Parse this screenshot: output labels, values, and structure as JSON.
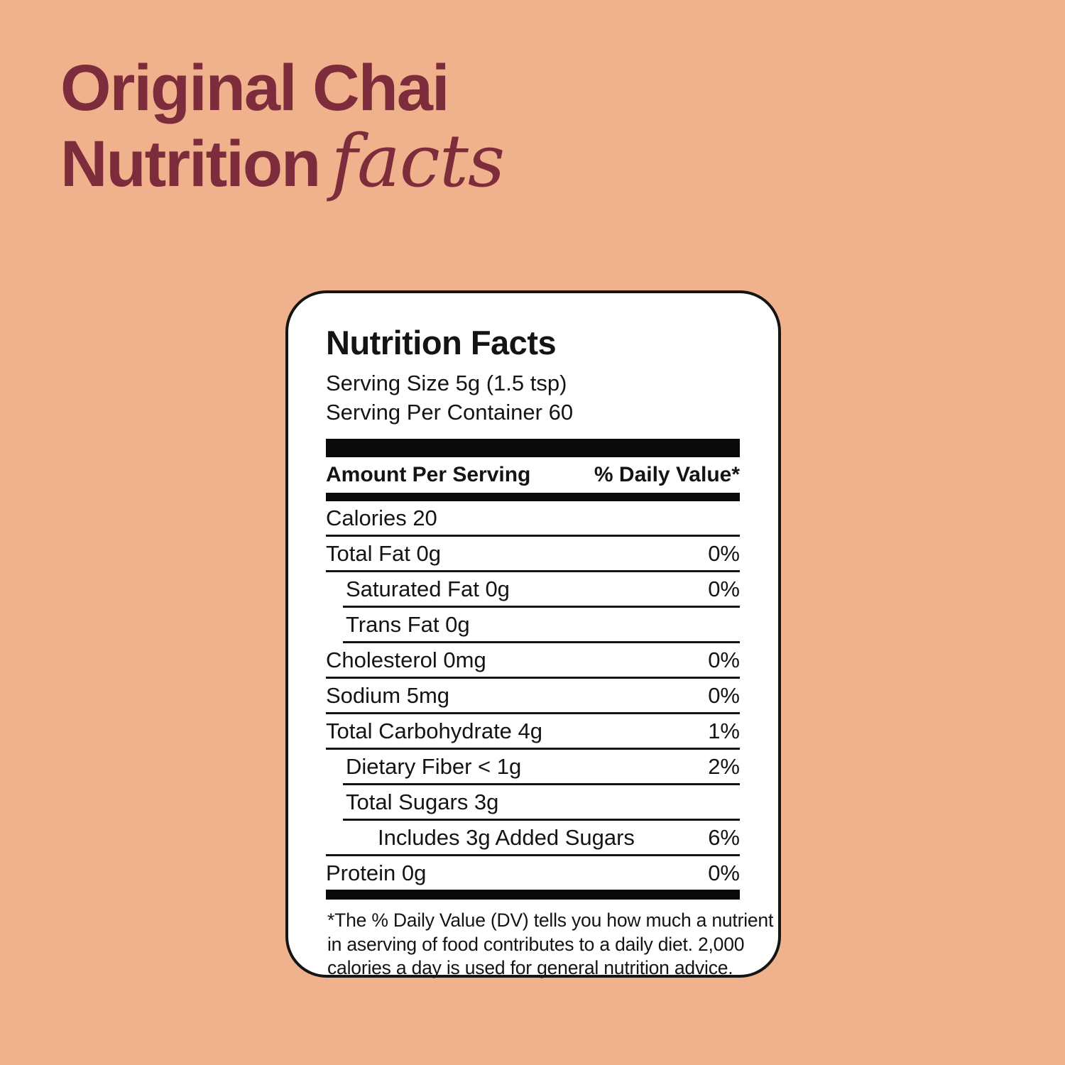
{
  "page": {
    "background_color": "#F0B18D",
    "title_color": "#7D2C3B"
  },
  "title": {
    "line1": "Original Chai",
    "line2_sans": "Nutrition",
    "line2_italic": "facts"
  },
  "label": {
    "heading": "Nutrition Facts",
    "serving_size": "Serving Size 5g (1.5 tsp)",
    "servings_per_container": "Serving Per Container 60",
    "columns": {
      "left": "Amount Per Serving",
      "right": "% Daily Value*"
    },
    "rows": [
      {
        "name": "Calories 20",
        "value": ""
      },
      {
        "name": "Total Fat 0g",
        "value": "0%"
      },
      {
        "name": "Saturated Fat 0g",
        "value": "0%"
      },
      {
        "name": "Trans Fat 0g",
        "value": ""
      },
      {
        "name": "Cholesterol 0mg",
        "value": "0%"
      },
      {
        "name": "Sodium 5mg",
        "value": "0%"
      },
      {
        "name": "Total Carbohydrate 4g",
        "value": "1%"
      },
      {
        "name": "Dietary Fiber < 1g",
        "value": "2%"
      },
      {
        "name": "Total Sugars 3g",
        "value": ""
      },
      {
        "name": "Includes 3g Added Sugars",
        "value": "6%"
      },
      {
        "name": "Protein 0g",
        "value": "0%"
      }
    ],
    "footnote_lines": [
      "*The % Daily Value (DV) tells you how much a nutrient",
      "in aserving of food contributes to a daily diet. 2,000",
      "calories a day is used for general nutrition advice."
    ]
  }
}
